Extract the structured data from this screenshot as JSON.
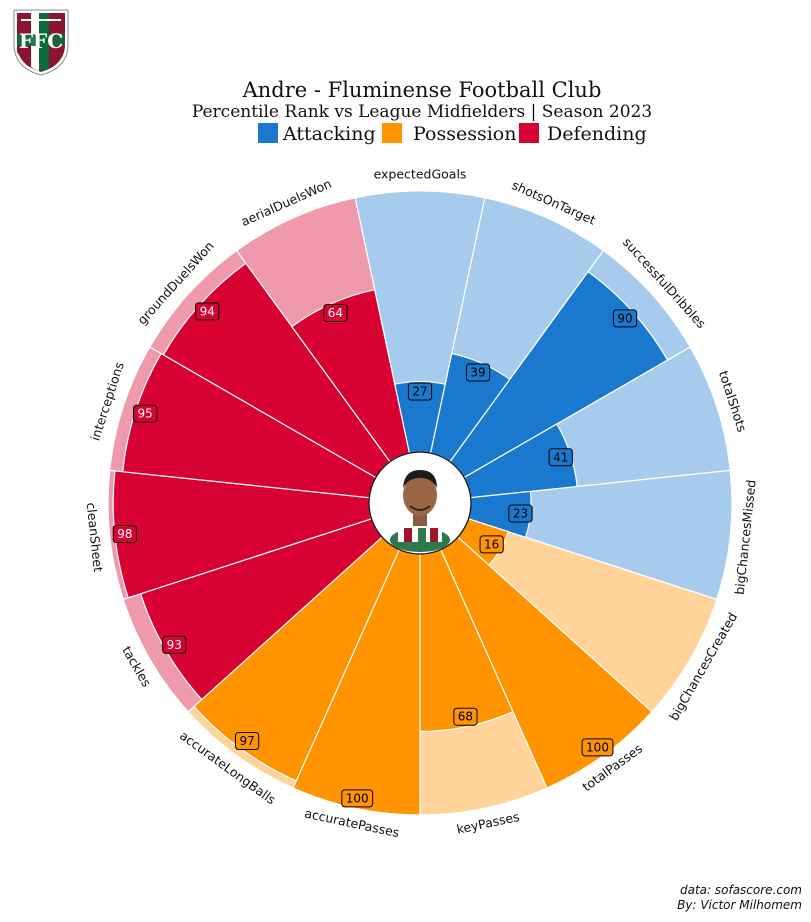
{
  "title": "Andre - Fluminense Football Club",
  "subtitle": "Percentile Rank vs League Midfielders | Season 2023",
  "legend": [
    {
      "label": "Attacking",
      "color": "#1a78cf",
      "light": "#a6cbec"
    },
    {
      "label": "Possession",
      "color": "#ff9300",
      "light": "#ffd399"
    },
    {
      "label": "Defending",
      "color": "#d70232",
      "light": "#ee9aac"
    }
  ],
  "credits": {
    "source": "data: sofascore.com",
    "author": "By: Victor Milhomem"
  },
  "chart_data": {
    "type": "polar-bar",
    "ylim": [
      0,
      100
    ],
    "categories": [
      "expectedGoals",
      "shotsOnTarget",
      "successfulDribbles",
      "totalShots",
      "bigChancesMissed",
      "bigChancesCreated",
      "totalPasses",
      "keyPasses",
      "accuratePasses",
      "accurateLongBalls",
      "tackles",
      "cleanSheet",
      "interceptions",
      "groundDuelsWon",
      "aerialDuelsWon"
    ],
    "groups": [
      "Attacking",
      "Attacking",
      "Attacking",
      "Attacking",
      "Attacking",
      "Possession",
      "Possession",
      "Possession",
      "Possession",
      "Possession",
      "Defending",
      "Defending",
      "Defending",
      "Defending",
      "Defending"
    ],
    "values": [
      27,
      39,
      90,
      41,
      23,
      16,
      100,
      68,
      100,
      97,
      93,
      98,
      95,
      94,
      64
    ]
  }
}
